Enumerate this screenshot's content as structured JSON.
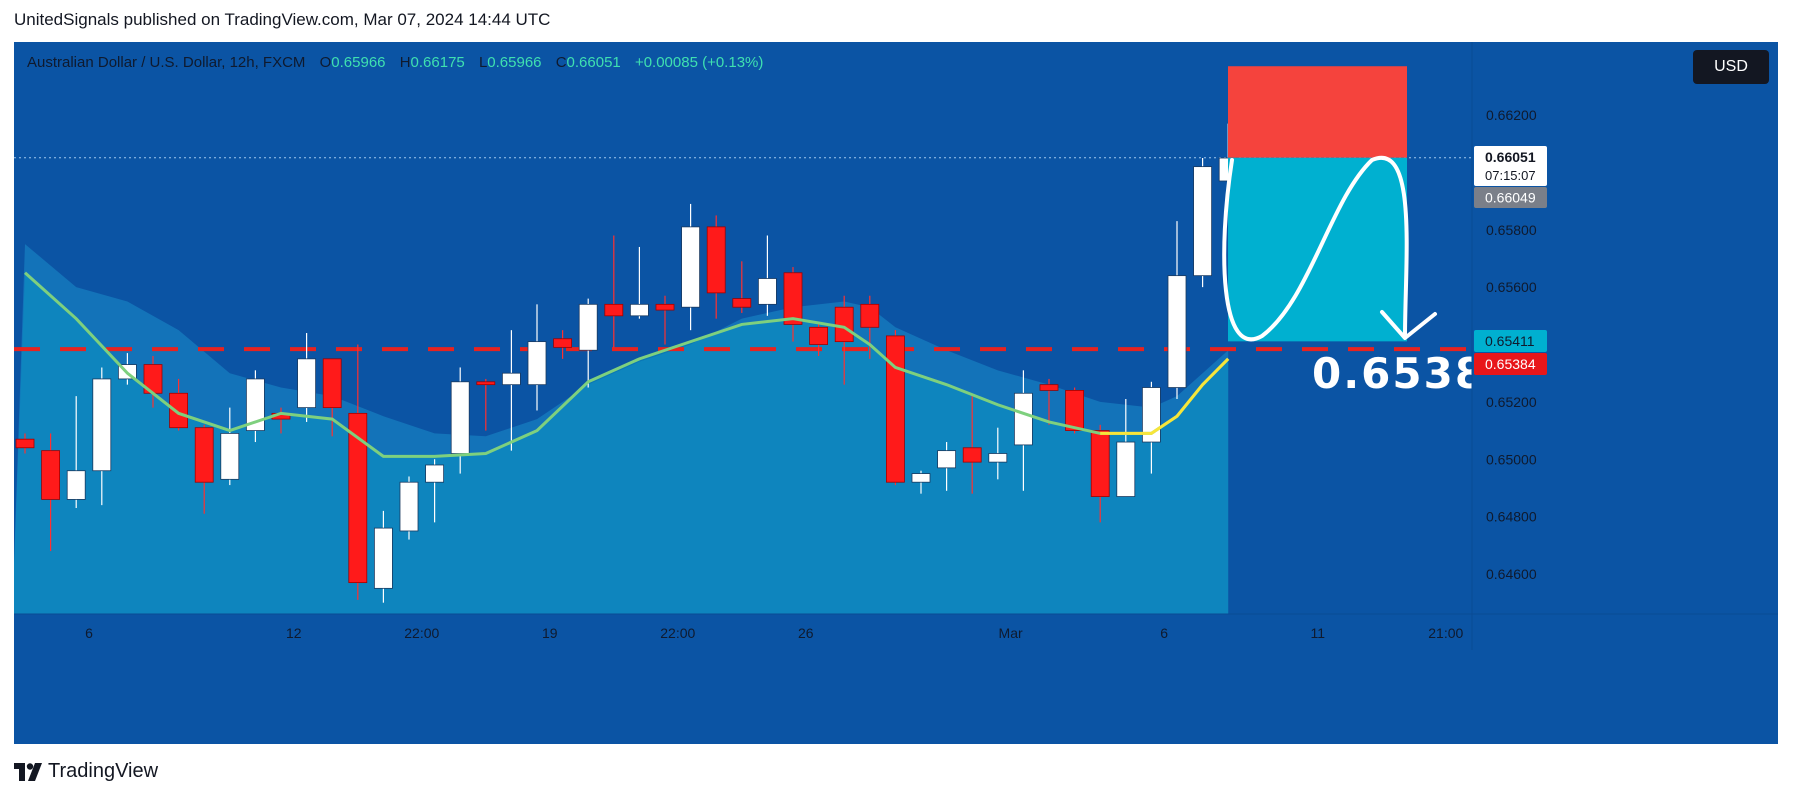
{
  "header": {
    "published_text": "UnitedSignals published on TradingView.com, Mar 07, 2024 14:44 UTC"
  },
  "legend": {
    "symbol": "Australian Dollar / U.S. Dollar, 12h, FXCM",
    "o_label": "O",
    "o_value": "0.65966",
    "h_label": "H",
    "h_value": "0.66175",
    "l_label": "L",
    "l_value": "0.65966",
    "c_label": "C",
    "c_value": "0.66051",
    "change": "+0.00085 (+0.13%)"
  },
  "currency_button": "USD",
  "annotation": {
    "target_text": "0.6538"
  },
  "price_tags": {
    "last_price": "0.66051",
    "countdown": "07:15:07",
    "prev_price": "0.66049",
    "target_price": "0.65411",
    "stop_price": "0.65384"
  },
  "footer": {
    "brand": "TradingView"
  },
  "colors": {
    "background": "#0b54a4",
    "up_candle": "#ffffff",
    "down_candle": "#ff1a1a",
    "ema_fast": "#f7e53a",
    "ema_slow": "#7ed07e",
    "stop_zone": "#f5433d",
    "target_zone": "#00b0d0",
    "support_line": "#e8231f"
  },
  "chart_data": {
    "type": "candlestick",
    "symbol": "Australian Dollar / U.S. Dollar",
    "timeframe": "12h",
    "y_range": [
      0.6449,
      0.6637
    ],
    "y_ticks": [
      "0.66200",
      "0.65800",
      "0.65600",
      "0.65200",
      "0.65000",
      "0.64800",
      "0.64600"
    ],
    "x_ticks": [
      {
        "label": "6",
        "index": 2.5
      },
      {
        "label": "12",
        "index": 10.5
      },
      {
        "label": "22:00",
        "index": 15.5
      },
      {
        "label": "19",
        "index": 20.5
      },
      {
        "label": "22:00",
        "index": 25.5
      },
      {
        "label": "26",
        "index": 30.5
      },
      {
        "label": "Mar",
        "index": 38.5
      },
      {
        "label": "6",
        "index": 44.5
      },
      {
        "label": "11",
        "index": 50.5
      },
      {
        "label": "21:00",
        "index": 55.5
      }
    ],
    "candles": [
      {
        "o": 0.6507,
        "h": 0.6509,
        "l": 0.6502,
        "c": 0.6504
      },
      {
        "o": 0.6503,
        "h": 0.6509,
        "l": 0.6468,
        "c": 0.6486
      },
      {
        "o": 0.6486,
        "h": 0.6522,
        "l": 0.6483,
        "c": 0.6496
      },
      {
        "o": 0.6496,
        "h": 0.6532,
        "l": 0.6484,
        "c": 0.6528
      },
      {
        "o": 0.6528,
        "h": 0.6537,
        "l": 0.6526,
        "c": 0.6533
      },
      {
        "o": 0.6533,
        "h": 0.6536,
        "l": 0.6518,
        "c": 0.6523
      },
      {
        "o": 0.6523,
        "h": 0.6528,
        "l": 0.651,
        "c": 0.6511
      },
      {
        "o": 0.6511,
        "h": 0.6512,
        "l": 0.6481,
        "c": 0.6492
      },
      {
        "o": 0.6493,
        "h": 0.6518,
        "l": 0.6491,
        "c": 0.6509
      },
      {
        "o": 0.651,
        "h": 0.6531,
        "l": 0.6506,
        "c": 0.6528
      },
      {
        "o": 0.6516,
        "h": 0.6518,
        "l": 0.6509,
        "c": 0.6514
      },
      {
        "o": 0.6518,
        "h": 0.6544,
        "l": 0.6513,
        "c": 0.6535
      },
      {
        "o": 0.6535,
        "h": 0.6535,
        "l": 0.6508,
        "c": 0.6518
      },
      {
        "o": 0.6516,
        "h": 0.654,
        "l": 0.6451,
        "c": 0.6457
      },
      {
        "o": 0.6455,
        "h": 0.6482,
        "l": 0.645,
        "c": 0.6476
      },
      {
        "o": 0.6475,
        "h": 0.6494,
        "l": 0.6472,
        "c": 0.6492
      },
      {
        "o": 0.6492,
        "h": 0.65,
        "l": 0.6478,
        "c": 0.6498
      },
      {
        "o": 0.6502,
        "h": 0.6532,
        "l": 0.6495,
        "c": 0.6527
      },
      {
        "o": 0.6527,
        "h": 0.6528,
        "l": 0.651,
        "c": 0.6526
      },
      {
        "o": 0.6526,
        "h": 0.6545,
        "l": 0.6503,
        "c": 0.653
      },
      {
        "o": 0.6526,
        "h": 0.6554,
        "l": 0.6517,
        "c": 0.6541
      },
      {
        "o": 0.6542,
        "h": 0.6545,
        "l": 0.6535,
        "c": 0.6539
      },
      {
        "o": 0.6538,
        "h": 0.6556,
        "l": 0.6525,
        "c": 0.6554
      },
      {
        "o": 0.6554,
        "h": 0.6578,
        "l": 0.6539,
        "c": 0.655
      },
      {
        "o": 0.655,
        "h": 0.6574,
        "l": 0.6549,
        "c": 0.6554
      },
      {
        "o": 0.6554,
        "h": 0.6557,
        "l": 0.654,
        "c": 0.6552
      },
      {
        "o": 0.6553,
        "h": 0.6589,
        "l": 0.6545,
        "c": 0.6581
      },
      {
        "o": 0.6581,
        "h": 0.6585,
        "l": 0.6549,
        "c": 0.6558
      },
      {
        "o": 0.6556,
        "h": 0.6569,
        "l": 0.6551,
        "c": 0.6553
      },
      {
        "o": 0.6554,
        "h": 0.6578,
        "l": 0.655,
        "c": 0.6563
      },
      {
        "o": 0.6565,
        "h": 0.6567,
        "l": 0.6541,
        "c": 0.6547
      },
      {
        "o": 0.6546,
        "h": 0.6548,
        "l": 0.6536,
        "c": 0.654
      },
      {
        "o": 0.6553,
        "h": 0.6557,
        "l": 0.6526,
        "c": 0.6541
      },
      {
        "o": 0.6554,
        "h": 0.6557,
        "l": 0.6535,
        "c": 0.6546
      },
      {
        "o": 0.6543,
        "h": 0.6545,
        "l": 0.6491,
        "c": 0.6492
      },
      {
        "o": 0.6492,
        "h": 0.6496,
        "l": 0.6488,
        "c": 0.6495
      },
      {
        "o": 0.6497,
        "h": 0.6506,
        "l": 0.6489,
        "c": 0.6503
      },
      {
        "o": 0.6504,
        "h": 0.6522,
        "l": 0.6488,
        "c": 0.6499
      },
      {
        "o": 0.6499,
        "h": 0.6511,
        "l": 0.6493,
        "c": 0.6502
      },
      {
        "o": 0.6505,
        "h": 0.6531,
        "l": 0.6489,
        "c": 0.6523
      },
      {
        "o": 0.6526,
        "h": 0.6528,
        "l": 0.6512,
        "c": 0.6524
      },
      {
        "o": 0.6524,
        "h": 0.6525,
        "l": 0.6509,
        "c": 0.651
      },
      {
        "o": 0.651,
        "h": 0.6512,
        "l": 0.6478,
        "c": 0.6487
      },
      {
        "o": 0.6487,
        "h": 0.6521,
        "l": 0.6487,
        "c": 0.6506
      },
      {
        "o": 0.6506,
        "h": 0.6527,
        "l": 0.6495,
        "c": 0.6525
      },
      {
        "o": 0.6525,
        "h": 0.6583,
        "l": 0.6521,
        "c": 0.6564
      },
      {
        "o": 0.6564,
        "h": 0.6605,
        "l": 0.656,
        "c": 0.6602
      },
      {
        "o": 0.6597,
        "h": 0.6617,
        "l": 0.6597,
        "c": 0.6605
      }
    ],
    "ema_fast": [
      [
        0,
        0.6565
      ],
      [
        2,
        0.6549
      ],
      [
        4,
        0.653
      ],
      [
        6,
        0.6516
      ],
      [
        8,
        0.651
      ],
      [
        10,
        0.6516
      ],
      [
        12,
        0.6514
      ],
      [
        14,
        0.6501
      ],
      [
        16,
        0.6501
      ],
      [
        18,
        0.6502
      ],
      [
        20,
        0.651
      ],
      [
        22,
        0.6532
      ],
      [
        24,
        0.6543
      ],
      [
        26,
        0.6552
      ],
      [
        28,
        0.6556
      ],
      [
        30,
        0.6557
      ],
      [
        32,
        0.6553
      ],
      [
        33,
        0.6542
      ],
      [
        34,
        0.6531
      ],
      [
        36,
        0.6526
      ],
      [
        38,
        0.6519
      ],
      [
        40,
        0.6513
      ],
      [
        42,
        0.6509
      ],
      [
        44,
        0.6509
      ],
      [
        45,
        0.6515
      ],
      [
        46,
        0.6526
      ],
      [
        47,
        0.6535
      ]
    ],
    "ema_slow": [
      [
        0,
        0.6565
      ],
      [
        2,
        0.6549
      ],
      [
        4,
        0.653
      ],
      [
        6,
        0.6516
      ],
      [
        8,
        0.651
      ],
      [
        10,
        0.6516
      ],
      [
        12,
        0.6514
      ],
      [
        14,
        0.6501
      ],
      [
        16,
        0.6501
      ],
      [
        18,
        0.6502
      ],
      [
        20,
        0.651
      ],
      [
        22,
        0.6527
      ],
      [
        24,
        0.6535
      ],
      [
        26,
        0.6541
      ],
      [
        28,
        0.6547
      ],
      [
        30,
        0.6549
      ],
      [
        32,
        0.6546
      ],
      [
        33,
        0.654
      ],
      [
        34,
        0.6532
      ],
      [
        36,
        0.6526
      ],
      [
        38,
        0.6519
      ],
      [
        40,
        0.6513
      ],
      [
        42,
        0.6509
      ],
      [
        44,
        0.6509
      ],
      [
        45,
        0.6515
      ],
      [
        46,
        0.6526
      ],
      [
        47,
        0.6535
      ]
    ],
    "cloud_top": [
      [
        0,
        0.6575
      ],
      [
        2,
        0.656
      ],
      [
        4,
        0.6555
      ],
      [
        6,
        0.6545
      ],
      [
        8,
        0.653
      ],
      [
        10,
        0.6525
      ],
      [
        12,
        0.6522
      ],
      [
        14,
        0.6515
      ],
      [
        16,
        0.6509
      ],
      [
        18,
        0.6508
      ],
      [
        20,
        0.6514
      ],
      [
        22,
        0.6526
      ],
      [
        24,
        0.6534
      ],
      [
        26,
        0.654
      ],
      [
        28,
        0.6549
      ],
      [
        30,
        0.6553
      ],
      [
        32,
        0.6555
      ],
      [
        33,
        0.6553
      ],
      [
        34,
        0.6546
      ],
      [
        36,
        0.6538
      ],
      [
        38,
        0.6531
      ],
      [
        40,
        0.6526
      ],
      [
        42,
        0.652
      ],
      [
        44,
        0.6518
      ],
      [
        45,
        0.6522
      ],
      [
        46,
        0.653
      ],
      [
        47,
        0.6538
      ]
    ],
    "support_level": 0.65384,
    "current_price_line": 0.66051,
    "position": {
      "direction": "short",
      "entry": 0.66051,
      "stop": 0.6637,
      "target": 0.65411,
      "x_start": 48,
      "x_end": 55
    },
    "annotations": [
      "0.6538"
    ]
  }
}
